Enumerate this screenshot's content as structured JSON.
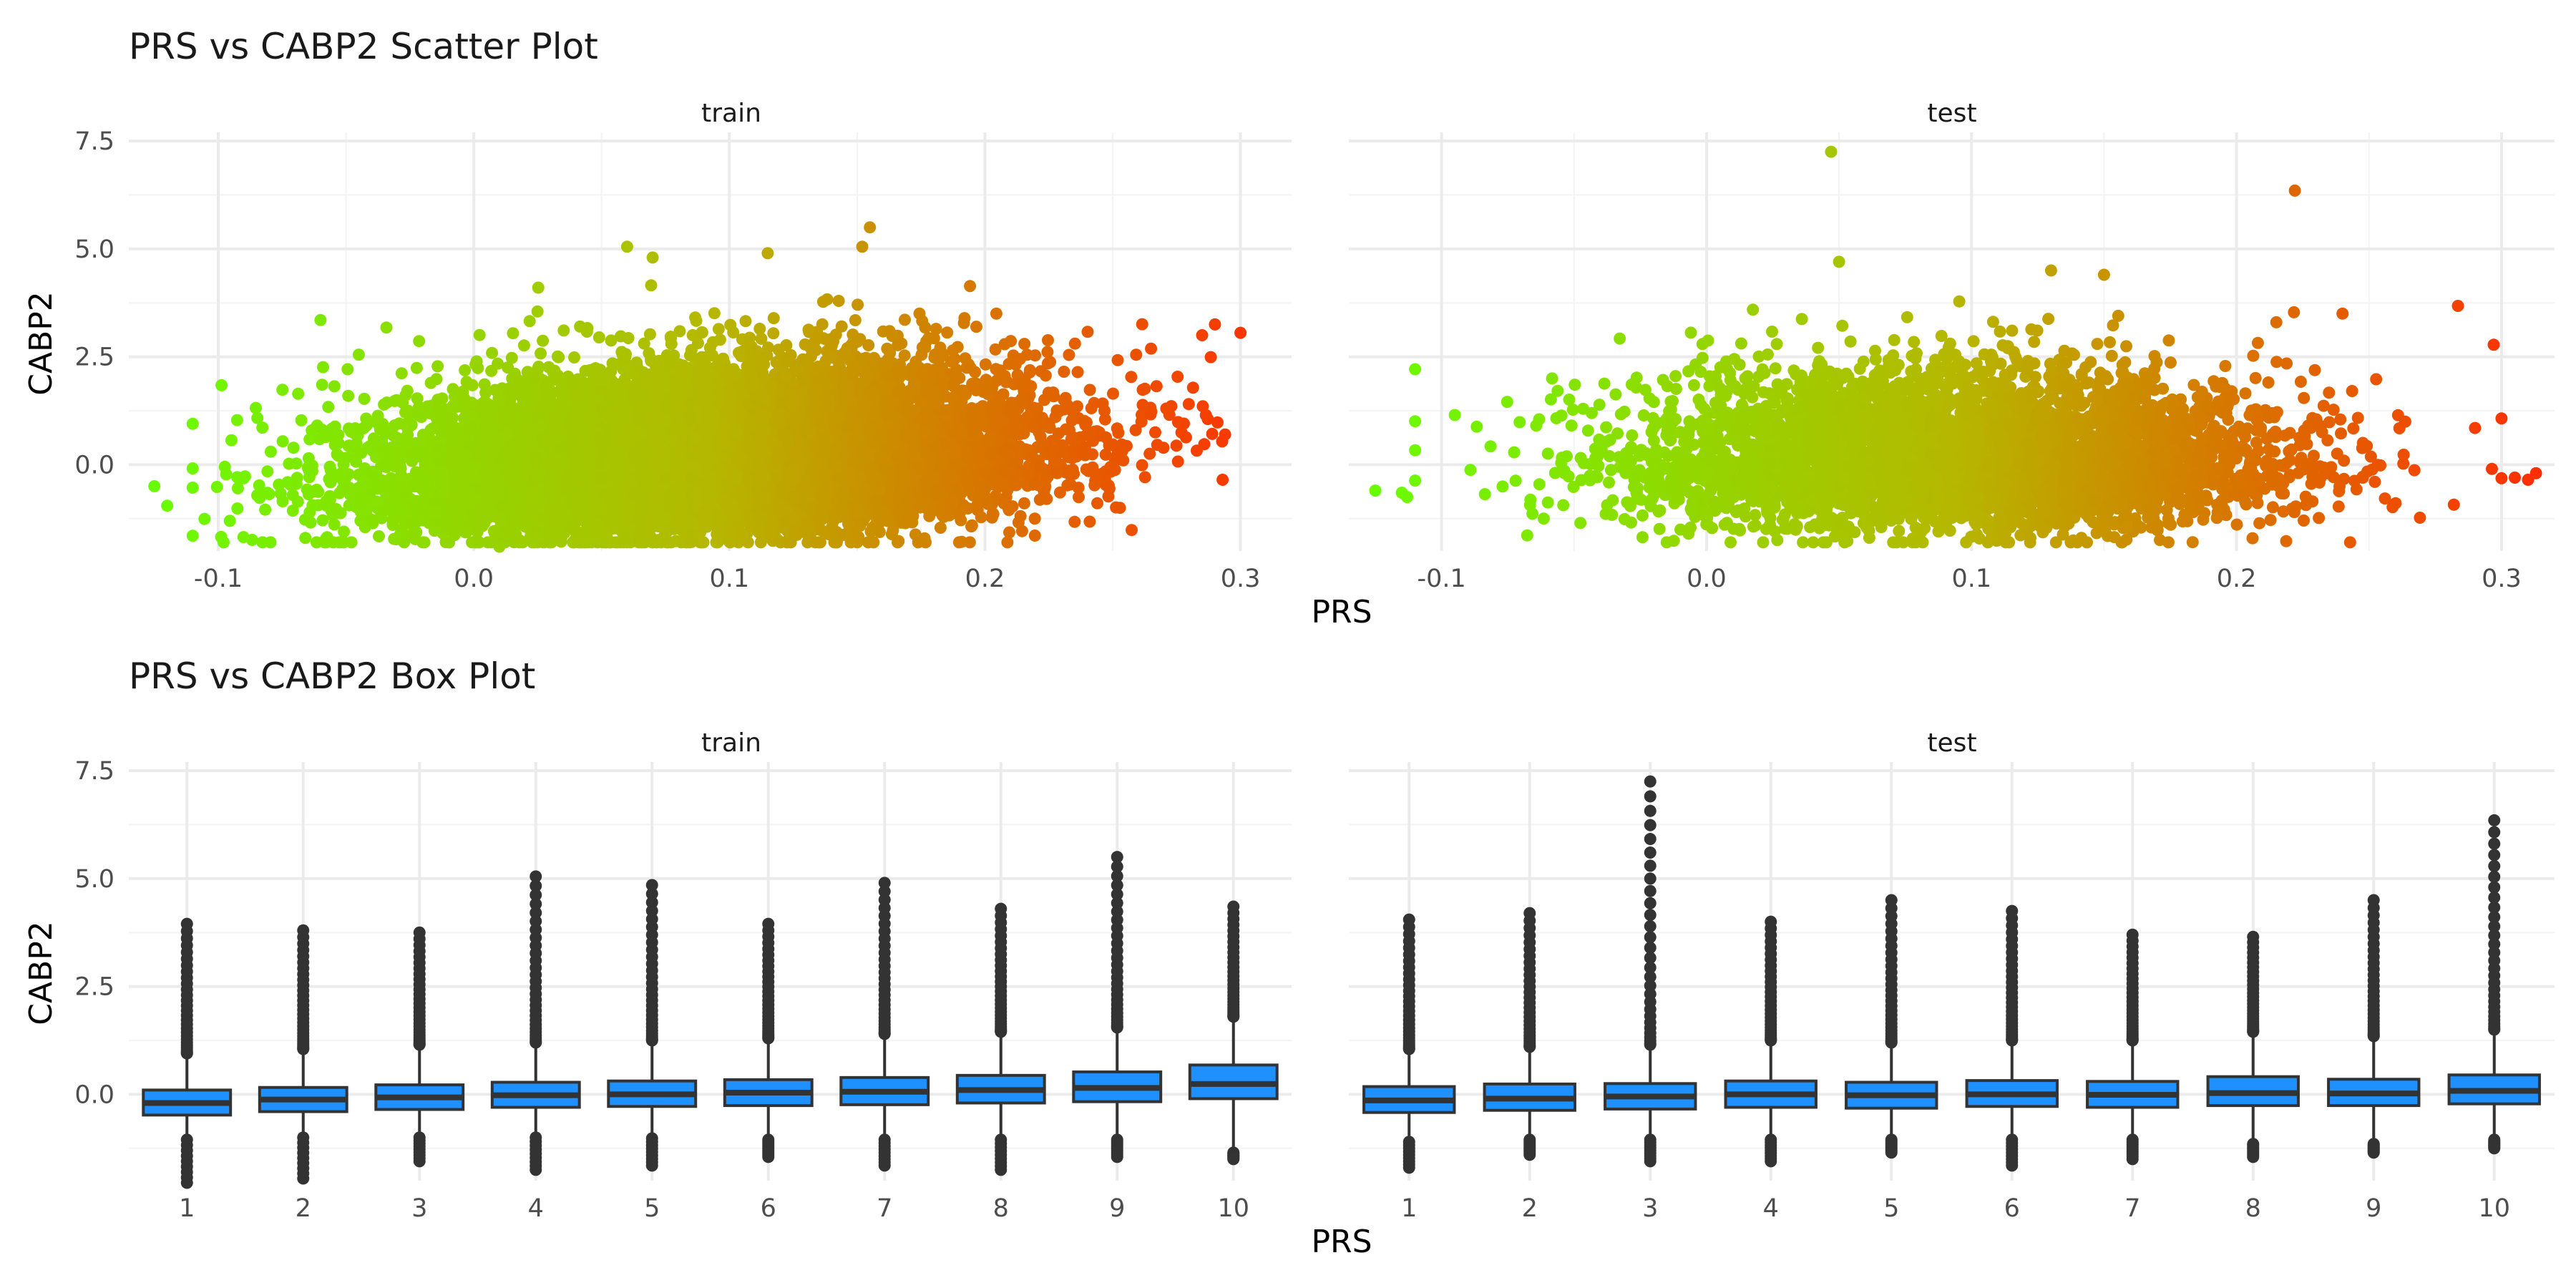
{
  "chart_data": [
    {
      "type": "scatter",
      "title": "PRS vs CABP2 Scatter Plot",
      "xlabel": "PRS",
      "ylabel": "CABP2",
      "xlim": [
        -0.135,
        0.32
      ],
      "ylim": [
        -2.0,
        7.7
      ],
      "x_ticks": [
        "-0.1",
        "0.0",
        "0.1",
        "0.2",
        "0.3"
      ],
      "y_ticks": [
        "0.0",
        "2.5",
        "5.0",
        "7.5"
      ],
      "color_gradient": {
        "low": "#66ff00",
        "mid": "#b5b800",
        "high": "#ff2a00"
      },
      "panels": [
        {
          "name": "train",
          "n_points": 12000,
          "x_mean": 0.095,
          "x_sd": 0.06,
          "y_trend_slope": 3.0,
          "outliers": [
            {
              "x": -0.125,
              "y": -0.5
            },
            {
              "x": -0.12,
              "y": -0.95
            },
            {
              "x": -0.06,
              "y": 3.35
            },
            {
              "x": -0.045,
              "y": 2.55
            },
            {
              "x": 0.06,
              "y": 5.05
            },
            {
              "x": 0.07,
              "y": 4.8
            },
            {
              "x": 0.155,
              "y": 5.5
            },
            {
              "x": 0.152,
              "y": 5.05
            },
            {
              "x": 0.115,
              "y": 4.9
            },
            {
              "x": 0.29,
              "y": 3.25
            },
            {
              "x": 0.285,
              "y": 3.0
            },
            {
              "x": 0.294,
              "y": 0.7
            },
            {
              "x": 0.293,
              "y": -0.35
            },
            {
              "x": -0.055,
              "y": -1.8
            },
            {
              "x": 0.01,
              "y": -1.9
            }
          ]
        },
        {
          "name": "test",
          "n_points": 5000,
          "x_mean": 0.095,
          "x_sd": 0.06,
          "y_trend_slope": 0.6,
          "outliers": [
            {
              "x": 0.047,
              "y": 7.25
            },
            {
              "x": 0.222,
              "y": 6.35
            },
            {
              "x": 0.24,
              "y": 3.5
            },
            {
              "x": -0.125,
              "y": -0.6
            },
            {
              "x": -0.115,
              "y": -0.65
            },
            {
              "x": -0.113,
              "y": -0.75
            },
            {
              "x": -0.095,
              "y": 1.15
            },
            {
              "x": 0.305,
              "y": -0.3
            },
            {
              "x": 0.31,
              "y": -0.35
            },
            {
              "x": 0.313,
              "y": -0.2
            },
            {
              "x": 0.29,
              "y": 0.85
            },
            {
              "x": 0.05,
              "y": 4.7
            },
            {
              "x": 0.13,
              "y": 4.5
            },
            {
              "x": 0.15,
              "y": 4.4
            },
            {
              "x": 0.215,
              "y": 3.3
            }
          ]
        }
      ]
    },
    {
      "type": "box",
      "title": "PRS vs CABP2 Box Plot",
      "xlabel": "PRS",
      "ylabel": "CABP2",
      "ylim": [
        -2.0,
        7.7
      ],
      "categories": [
        "1",
        "2",
        "3",
        "4",
        "5",
        "6",
        "7",
        "8",
        "9",
        "10"
      ],
      "y_ticks": [
        "0.0",
        "2.5",
        "5.0",
        "7.5"
      ],
      "box_fill": "#1e90ff",
      "panels": [
        {
          "name": "train",
          "boxes": [
            {
              "q1": -0.48,
              "median": -0.2,
              "q3": 0.1,
              "lower": -0.95,
              "upper": 0.85,
              "out_top": 3.95,
              "out_bottom": -2.05
            },
            {
              "q1": -0.4,
              "median": -0.12,
              "q3": 0.16,
              "lower": -0.9,
              "upper": 0.95,
              "out_top": 3.8,
              "out_bottom": -1.95
            },
            {
              "q1": -0.35,
              "median": -0.07,
              "q3": 0.22,
              "lower": -0.9,
              "upper": 1.05,
              "out_top": 3.75,
              "out_bottom": -1.55
            },
            {
              "q1": -0.3,
              "median": -0.02,
              "q3": 0.28,
              "lower": -0.9,
              "upper": 1.1,
              "out_top": 5.05,
              "out_bottom": -1.75
            },
            {
              "q1": -0.28,
              "median": 0.0,
              "q3": 0.31,
              "lower": -0.92,
              "upper": 1.15,
              "out_top": 4.85,
              "out_bottom": -1.65
            },
            {
              "q1": -0.26,
              "median": 0.04,
              "q3": 0.34,
              "lower": -0.95,
              "upper": 1.2,
              "out_top": 3.95,
              "out_bottom": -1.45
            },
            {
              "q1": -0.24,
              "median": 0.06,
              "q3": 0.39,
              "lower": -0.95,
              "upper": 1.3,
              "out_top": 4.9,
              "out_bottom": -1.65
            },
            {
              "q1": -0.2,
              "median": 0.1,
              "q3": 0.44,
              "lower": -0.95,
              "upper": 1.35,
              "out_top": 4.3,
              "out_bottom": -1.75
            },
            {
              "q1": -0.17,
              "median": 0.15,
              "q3": 0.52,
              "lower": -0.95,
              "upper": 1.45,
              "out_top": 5.5,
              "out_bottom": -1.45
            },
            {
              "q1": -0.1,
              "median": 0.24,
              "q3": 0.68,
              "lower": -1.25,
              "upper": 1.7,
              "out_top": 4.35,
              "out_bottom": -1.5
            }
          ]
        },
        {
          "name": "test",
          "boxes": [
            {
              "q1": -0.42,
              "median": -0.14,
              "q3": 0.18,
              "lower": -1.0,
              "upper": 0.95,
              "out_top": 4.05,
              "out_bottom": -1.7
            },
            {
              "q1": -0.37,
              "median": -0.1,
              "q3": 0.24,
              "lower": -0.95,
              "upper": 1.0,
              "out_top": 4.2,
              "out_bottom": -1.4
            },
            {
              "q1": -0.34,
              "median": -0.05,
              "q3": 0.25,
              "lower": -0.95,
              "upper": 1.05,
              "out_top": 7.25,
              "out_bottom": -1.55
            },
            {
              "q1": -0.3,
              "median": 0.0,
              "q3": 0.31,
              "lower": -0.95,
              "upper": 1.15,
              "out_top": 4.0,
              "out_bottom": -1.55
            },
            {
              "q1": -0.32,
              "median": -0.02,
              "q3": 0.28,
              "lower": -0.95,
              "upper": 1.1,
              "out_top": 4.5,
              "out_bottom": -1.35
            },
            {
              "q1": -0.28,
              "median": 0.0,
              "q3": 0.32,
              "lower": -0.95,
              "upper": 1.15,
              "out_top": 4.25,
              "out_bottom": -1.65
            },
            {
              "q1": -0.3,
              "median": -0.01,
              "q3": 0.3,
              "lower": -0.95,
              "upper": 1.15,
              "out_top": 3.7,
              "out_bottom": -1.5
            },
            {
              "q1": -0.26,
              "median": 0.03,
              "q3": 0.41,
              "lower": -1.05,
              "upper": 1.35,
              "out_top": 3.65,
              "out_bottom": -1.45
            },
            {
              "q1": -0.26,
              "median": 0.02,
              "q3": 0.35,
              "lower": -1.05,
              "upper": 1.25,
              "out_top": 4.5,
              "out_bottom": -1.35
            },
            {
              "q1": -0.22,
              "median": 0.08,
              "q3": 0.45,
              "lower": -0.95,
              "upper": 1.4,
              "out_top": 6.35,
              "out_bottom": -1.25
            }
          ]
        }
      ]
    }
  ]
}
